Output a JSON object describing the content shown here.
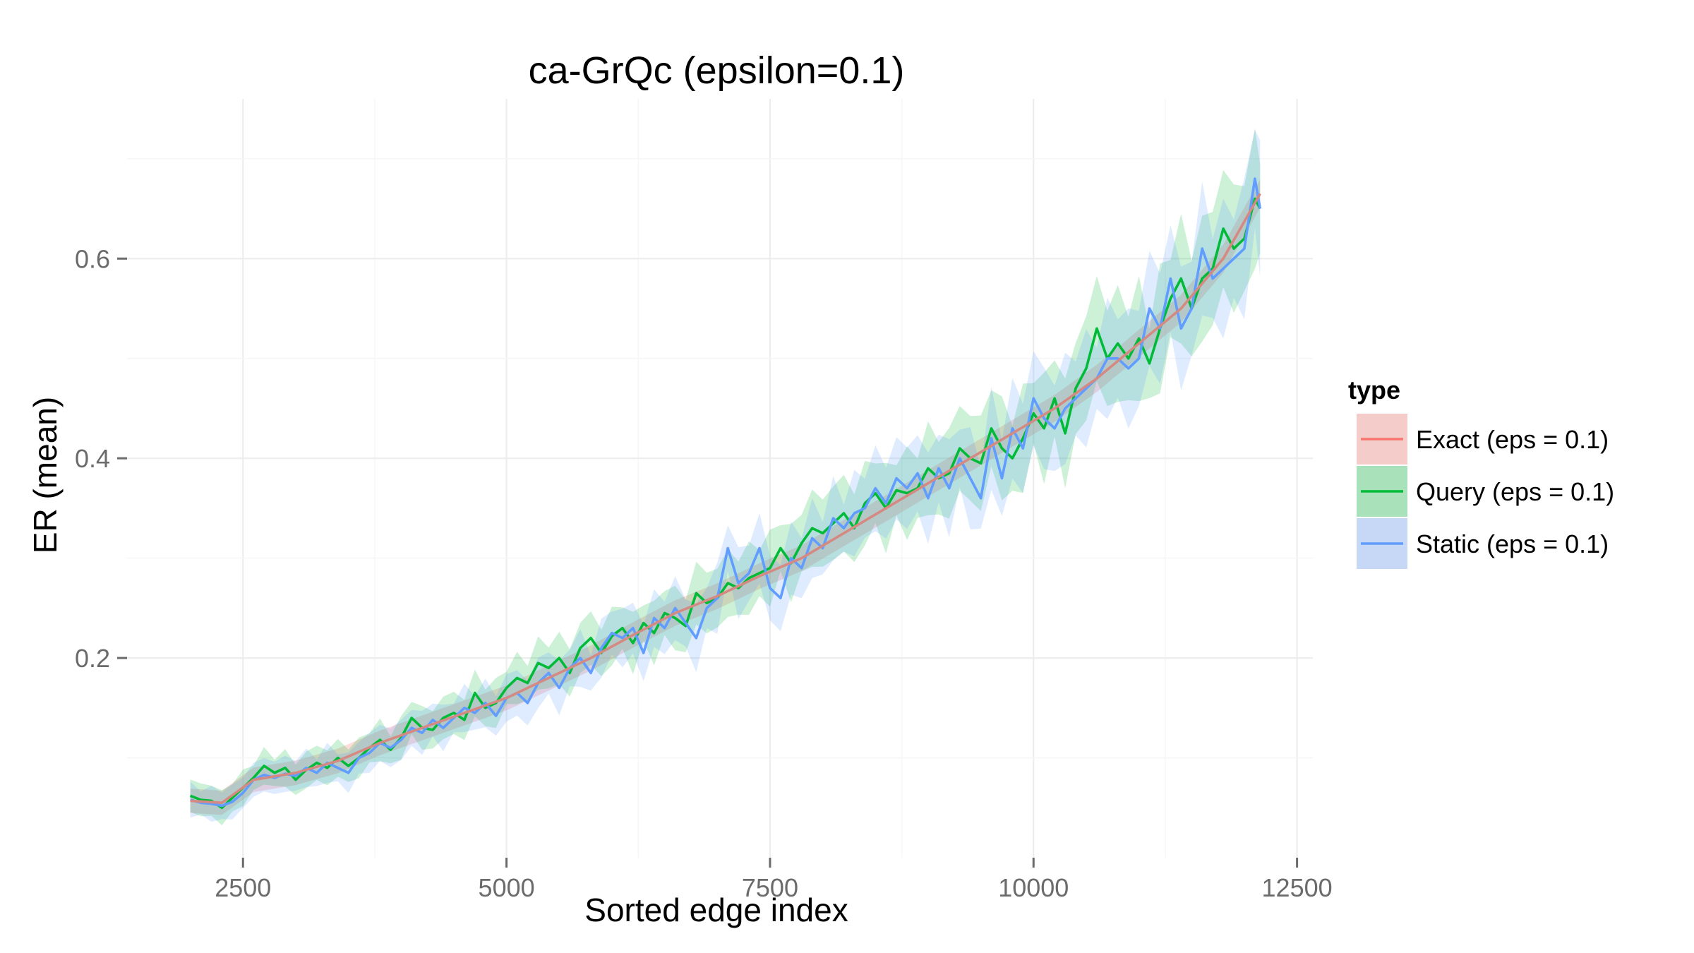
{
  "chart_data": {
    "type": "line",
    "title": "ca-GrQc (epsilon=0.1)",
    "xlabel": "Sorted edge index",
    "ylabel": "ER (mean)",
    "xlim": [
      1400,
      12650
    ],
    "ylim": [
      0.0,
      0.76
    ],
    "x_ticks": [
      2500,
      5000,
      7500,
      10000,
      12500
    ],
    "x_tick_labels": [
      "2500",
      "5000",
      "7500",
      "10000",
      "12500"
    ],
    "y_ticks": [
      0.2,
      0.4,
      0.6
    ],
    "y_tick_labels": [
      "0.2",
      "0.4",
      "0.6"
    ],
    "grid": true,
    "legend": {
      "title": "type",
      "placement": "right"
    },
    "series": [
      {
        "name": "Exact (eps = 0.1)",
        "color": "#F8766D",
        "x": [
          2000,
          2300,
          2600,
          3000,
          3400,
          3800,
          4200,
          4600,
          5000,
          5400,
          5800,
          6200,
          6600,
          7000,
          7400,
          7800,
          8200,
          8600,
          9000,
          9400,
          9800,
          10200,
          10600,
          11000,
          11400,
          11800,
          12150
        ],
        "values": [
          0.057,
          0.055,
          0.078,
          0.085,
          0.097,
          0.115,
          0.13,
          0.145,
          0.16,
          0.18,
          0.2,
          0.223,
          0.245,
          0.262,
          0.282,
          0.3,
          0.325,
          0.35,
          0.375,
          0.4,
          0.425,
          0.45,
          0.48,
          0.515,
          0.55,
          0.6,
          0.665
        ]
      },
      {
        "name": "Query (eps = 0.1)",
        "color": "#00BA38",
        "x": [
          2000,
          2100,
          2200,
          2300,
          2400,
          2500,
          2600,
          2700,
          2800,
          2900,
          3000,
          3100,
          3200,
          3300,
          3400,
          3500,
          3600,
          3700,
          3800,
          3900,
          4000,
          4100,
          4200,
          4300,
          4400,
          4500,
          4600,
          4700,
          4800,
          4900,
          5000,
          5100,
          5200,
          5300,
          5400,
          5500,
          5600,
          5700,
          5800,
          5900,
          6000,
          6100,
          6200,
          6300,
          6400,
          6500,
          6600,
          6700,
          6800,
          6900,
          7000,
          7100,
          7200,
          7300,
          7400,
          7500,
          7600,
          7700,
          7800,
          7900,
          8000,
          8100,
          8200,
          8300,
          8400,
          8500,
          8600,
          8700,
          8800,
          8900,
          9000,
          9100,
          9200,
          9300,
          9400,
          9500,
          9600,
          9700,
          9800,
          9900,
          10000,
          10100,
          10200,
          10300,
          10400,
          10500,
          10600,
          10700,
          10800,
          10900,
          11000,
          11100,
          11200,
          11300,
          11400,
          11500,
          11600,
          11700,
          11800,
          11900,
          12000,
          12100,
          12150
        ],
        "values": [
          0.062,
          0.058,
          0.057,
          0.05,
          0.06,
          0.07,
          0.08,
          0.092,
          0.085,
          0.09,
          0.078,
          0.088,
          0.095,
          0.09,
          0.1,
          0.092,
          0.1,
          0.11,
          0.118,
          0.108,
          0.12,
          0.14,
          0.13,
          0.128,
          0.14,
          0.145,
          0.138,
          0.165,
          0.15,
          0.155,
          0.17,
          0.18,
          0.175,
          0.195,
          0.19,
          0.2,
          0.185,
          0.21,
          0.22,
          0.205,
          0.222,
          0.23,
          0.215,
          0.235,
          0.225,
          0.245,
          0.24,
          0.232,
          0.265,
          0.255,
          0.26,
          0.275,
          0.27,
          0.28,
          0.285,
          0.29,
          0.31,
          0.295,
          0.315,
          0.33,
          0.325,
          0.335,
          0.345,
          0.33,
          0.355,
          0.365,
          0.35,
          0.368,
          0.365,
          0.37,
          0.39,
          0.38,
          0.385,
          0.41,
          0.4,
          0.395,
          0.43,
          0.41,
          0.4,
          0.42,
          0.445,
          0.43,
          0.46,
          0.425,
          0.47,
          0.49,
          0.53,
          0.5,
          0.515,
          0.5,
          0.52,
          0.495,
          0.53,
          0.56,
          0.58,
          0.55,
          0.58,
          0.59,
          0.63,
          0.61,
          0.62,
          0.66,
          0.65
        ]
      },
      {
        "name": "Static (eps = 0.1)",
        "color": "#619CFF",
        "x": [
          2000,
          2100,
          2200,
          2300,
          2400,
          2500,
          2600,
          2700,
          2800,
          2900,
          3000,
          3100,
          3200,
          3300,
          3400,
          3500,
          3600,
          3700,
          3800,
          3900,
          4000,
          4100,
          4200,
          4300,
          4400,
          4500,
          4600,
          4700,
          4800,
          4900,
          5000,
          5100,
          5200,
          5300,
          5400,
          5500,
          5600,
          5700,
          5800,
          5900,
          6000,
          6100,
          6200,
          6300,
          6400,
          6500,
          6600,
          6700,
          6800,
          6900,
          7000,
          7100,
          7200,
          7300,
          7400,
          7500,
          7600,
          7700,
          7800,
          7900,
          8000,
          8100,
          8200,
          8300,
          8400,
          8500,
          8600,
          8700,
          8800,
          8900,
          9000,
          9100,
          9200,
          9300,
          9400,
          9500,
          9600,
          9700,
          9800,
          9900,
          10000,
          10100,
          10200,
          10300,
          10400,
          10500,
          10600,
          10700,
          10800,
          10900,
          11000,
          11100,
          11200,
          11300,
          11400,
          11500,
          11600,
          11700,
          11800,
          11900,
          12000,
          12100,
          12150
        ],
        "values": [
          0.058,
          0.055,
          0.054,
          0.052,
          0.056,
          0.065,
          0.078,
          0.083,
          0.08,
          0.084,
          0.082,
          0.09,
          0.085,
          0.095,
          0.09,
          0.085,
          0.1,
          0.105,
          0.115,
          0.11,
          0.118,
          0.13,
          0.125,
          0.138,
          0.13,
          0.14,
          0.15,
          0.145,
          0.155,
          0.142,
          0.16,
          0.165,
          0.155,
          0.175,
          0.185,
          0.17,
          0.19,
          0.2,
          0.185,
          0.21,
          0.225,
          0.22,
          0.23,
          0.205,
          0.24,
          0.23,
          0.25,
          0.235,
          0.22,
          0.25,
          0.26,
          0.31,
          0.275,
          0.285,
          0.31,
          0.27,
          0.26,
          0.3,
          0.29,
          0.32,
          0.31,
          0.34,
          0.33,
          0.345,
          0.35,
          0.37,
          0.355,
          0.38,
          0.37,
          0.385,
          0.36,
          0.39,
          0.37,
          0.4,
          0.38,
          0.36,
          0.42,
          0.38,
          0.43,
          0.41,
          0.46,
          0.44,
          0.43,
          0.45,
          0.46,
          0.47,
          0.48,
          0.5,
          0.5,
          0.49,
          0.5,
          0.55,
          0.53,
          0.58,
          0.53,
          0.55,
          0.61,
          0.58,
          0.59,
          0.6,
          0.61,
          0.68,
          0.65
        ]
      }
    ]
  }
}
